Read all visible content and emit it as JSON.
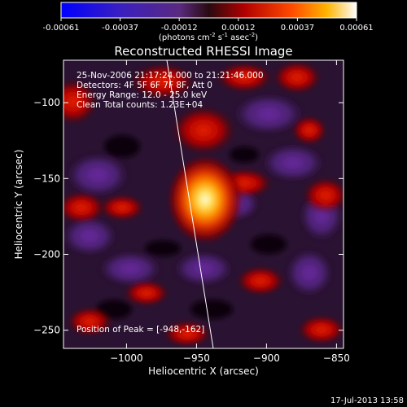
{
  "colorbar": {
    "ticks": [
      "-0.00061",
      "-0.00037",
      "-0.00012",
      "0.00012",
      "0.00037",
      "0.00061"
    ],
    "unit_base": "(photons cm",
    "unit_exp1": "-2",
    "unit_mid1": " s",
    "unit_exp2": "-1",
    "unit_mid2": " asec",
    "unit_exp3": "-2",
    "unit_close": ")"
  },
  "title": "Reconstructed RHESSI Image",
  "info": {
    "line1": "25-Nov-2006 21:17:24.000 to 21:21:46.000",
    "line2": "Detectors: 4F 5F 6F 7F 8F, Att 0",
    "line3": "Energy Range: 12.0 - 25.0 keV",
    "line4": "Clean     Total counts: 1.23E+04"
  },
  "peak_label": "Position of Peak = [-948,-162]",
  "x_axis": {
    "label": "Heliocentric X (arcsec)",
    "ticks": [
      {
        "value": -1000,
        "label": "−1000"
      },
      {
        "value": -950,
        "label": "−950"
      },
      {
        "value": -900,
        "label": "−900"
      },
      {
        "value": -850,
        "label": "−850"
      }
    ],
    "range": [
      -1045,
      -845
    ]
  },
  "y_axis": {
    "label": "Heliocentric Y (arcsec)",
    "ticks": [
      {
        "value": -100,
        "label": "−100"
      },
      {
        "value": -150,
        "label": "−150"
      },
      {
        "value": -200,
        "label": "−200"
      },
      {
        "value": -250,
        "label": "−250"
      }
    ],
    "range": [
      -262,
      -72
    ]
  },
  "timestamp": "17-Jul-2013 13:58",
  "colors": {
    "background": "#000000",
    "foreground": "#ffffff",
    "limb_line": "#ffffff"
  }
}
